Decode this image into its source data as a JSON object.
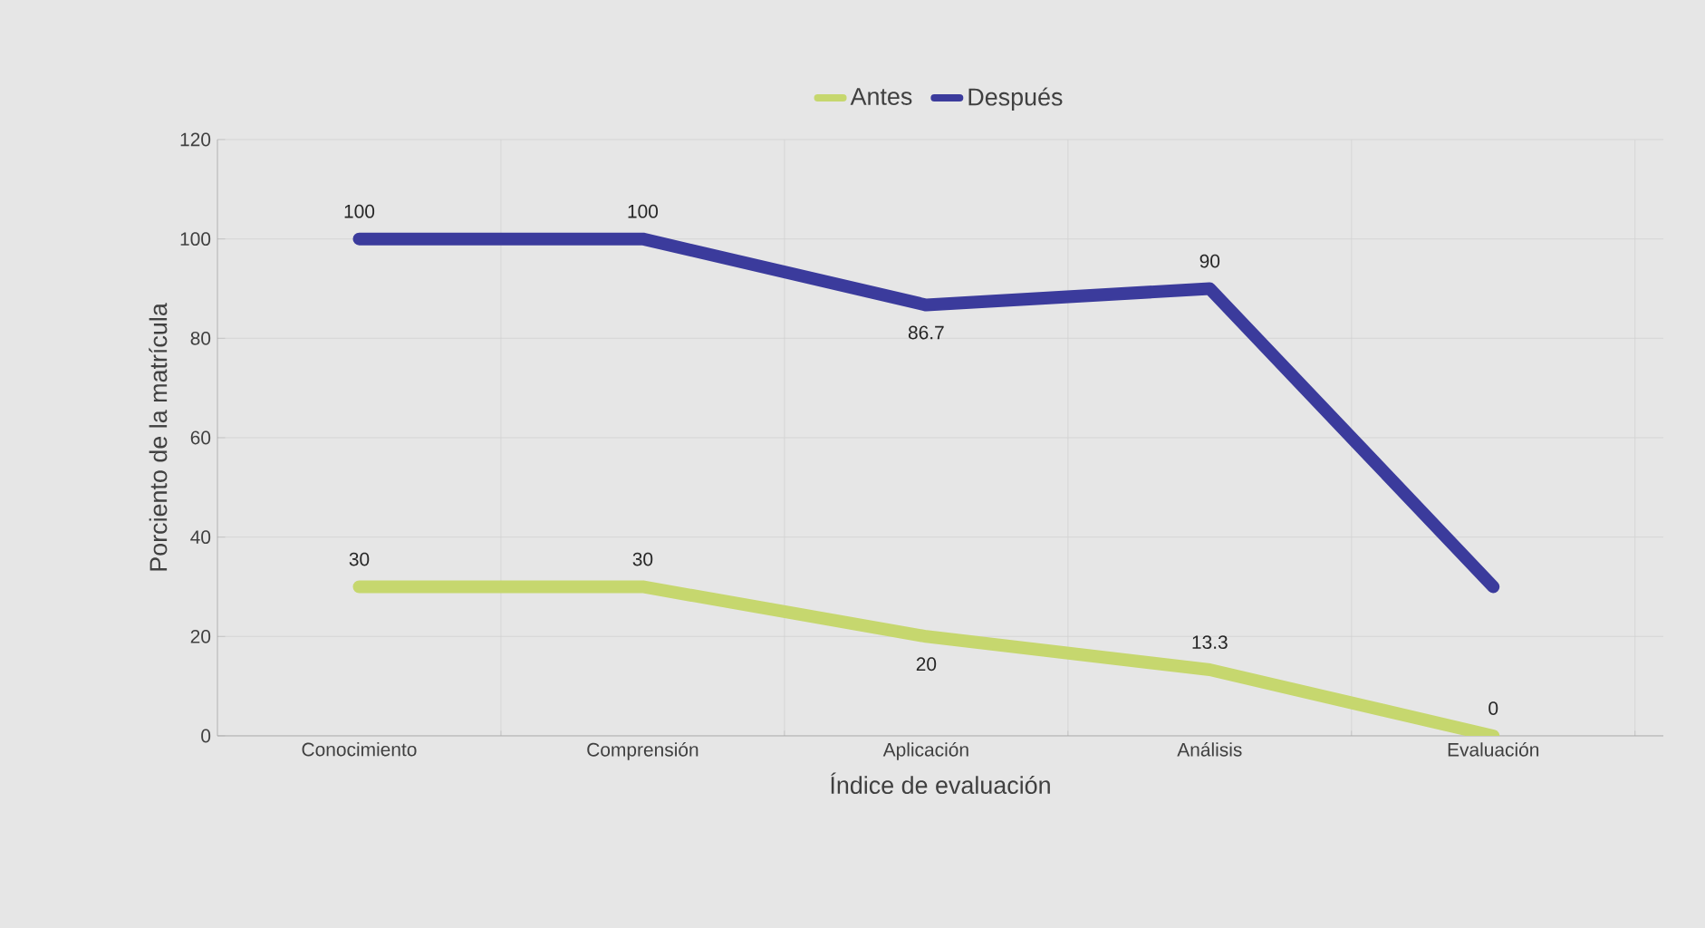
{
  "chart_data": {
    "type": "line",
    "xlabel": "Índice de evaluación",
    "ylabel": "Porciento de la matrícula",
    "categories": [
      "Conocimiento",
      "Comprensión",
      "Aplicación",
      "Análisis",
      "Evaluación"
    ],
    "series": [
      {
        "name": "Antes",
        "color": "#c6d76e",
        "values": [
          30,
          30,
          20,
          13.3,
          0
        ],
        "value_labels": [
          "30",
          "30",
          "20",
          "13.3",
          "0"
        ]
      },
      {
        "name": "Después",
        "color": "#3b3b9c",
        "values": [
          100,
          100,
          86.7,
          90,
          30
        ],
        "value_labels": [
          "100",
          "100",
          "86.7",
          "90",
          null
        ]
      }
    ],
    "ylim": [
      0,
      120
    ],
    "yticks": [
      0,
      20,
      40,
      60,
      80,
      100,
      120
    ],
    "grid": true,
    "legend": "top",
    "marker": "none",
    "line_style": "solid"
  }
}
